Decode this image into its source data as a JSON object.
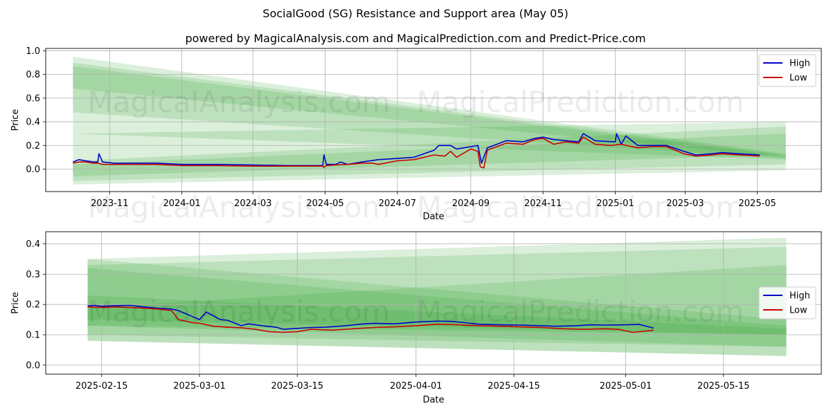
{
  "title": "SocialGood (SG) Resistance and Support area (May 05)",
  "subtitle": "powered by MagicalAnalysis.com and MagicalPrediction.com and Predict-Price.com",
  "watermarks": [
    "MagicalAnalysis.com",
    "MagicalPrediction.com"
  ],
  "colors": {
    "high": "#0000cc",
    "low": "#cc0000",
    "band": "#2ca02c",
    "grid": "#b0b0b0"
  },
  "chart_data": [
    {
      "type": "line",
      "title": "",
      "xlabel": "Date",
      "ylabel": "Price",
      "xlim": [
        "2023-09-08",
        "2025-06-24"
      ],
      "ylim": [
        -0.19,
        1.02
      ],
      "grid": true,
      "legend": "upper right",
      "x_ticks": [
        "2023-11",
        "2024-01",
        "2024-03",
        "2024-05",
        "2024-07",
        "2024-09",
        "2024-11",
        "2025-01",
        "2025-03",
        "2025-05"
      ],
      "x_tick_dates": [
        "2023-11-01",
        "2024-01-01",
        "2024-03-01",
        "2024-05-01",
        "2024-07-01",
        "2024-09-01",
        "2024-11-01",
        "2025-01-01",
        "2025-03-01",
        "2025-05-01"
      ],
      "y_ticks": [
        "0.0",
        "0.2",
        "0.4",
        "0.6",
        "0.8",
        "1.0"
      ],
      "y_tick_values": [
        0.0,
        0.2,
        0.4,
        0.6,
        0.8,
        1.0
      ],
      "bands": {
        "start": "2023-10-01",
        "end": "2025-05-25",
        "resistance": [
          {
            "start": [
              0.3,
              0.95
            ],
            "end": [
              0.08,
              0.13
            ]
          },
          {
            "start": [
              0.48,
              0.9
            ],
            "end": [
              0.09,
              0.12
            ]
          },
          {
            "start": [
              0.68,
              0.87
            ],
            "end": [
              0.1,
              0.11
            ]
          }
        ],
        "support": [
          {
            "start": [
              -0.13,
              0.3
            ],
            "end": [
              -0.01,
              0.4
            ]
          },
          {
            "start": [
              -0.1,
              0.07
            ],
            "end": [
              0.04,
              0.36
            ]
          },
          {
            "start": [
              -0.06,
              0.04
            ],
            "end": [
              0.12,
              0.3
            ]
          }
        ]
      },
      "series": [
        {
          "name": "High",
          "x": [
            "2023-10-01",
            "2023-10-06",
            "2023-10-12",
            "2023-10-18",
            "2023-10-22",
            "2023-10-23",
            "2023-10-26",
            "2023-11-05",
            "2023-11-20",
            "2023-12-10",
            "2024-01-01",
            "2024-02-01",
            "2024-03-01",
            "2024-04-01",
            "2024-04-29",
            "2024-04-30",
            "2024-05-02",
            "2024-05-10",
            "2024-05-14",
            "2024-05-20",
            "2024-06-01",
            "2024-06-15",
            "2024-07-01",
            "2024-07-15",
            "2024-08-01",
            "2024-08-05",
            "2024-08-15",
            "2024-08-20",
            "2024-09-01",
            "2024-09-07",
            "2024-09-10",
            "2024-09-15",
            "2024-10-01",
            "2024-10-15",
            "2024-10-25",
            "2024-11-01",
            "2024-11-10",
            "2024-11-20",
            "2024-12-01",
            "2024-12-05",
            "2024-12-15",
            "2025-01-01",
            "2025-01-02",
            "2025-01-06",
            "2025-01-10",
            "2025-01-20",
            "2025-02-01",
            "2025-02-13",
            "2025-02-28",
            "2025-03-10",
            "2025-03-24",
            "2025-04-01",
            "2025-04-15",
            "2025-05-03"
          ],
          "values": [
            0.06,
            0.08,
            0.07,
            0.06,
            0.06,
            0.13,
            0.06,
            0.05,
            0.05,
            0.05,
            0.04,
            0.04,
            0.035,
            0.03,
            0.03,
            0.12,
            0.04,
            0.04,
            0.06,
            0.04,
            0.06,
            0.08,
            0.09,
            0.1,
            0.16,
            0.2,
            0.2,
            0.17,
            0.19,
            0.2,
            0.05,
            0.18,
            0.24,
            0.23,
            0.26,
            0.27,
            0.25,
            0.24,
            0.23,
            0.3,
            0.24,
            0.23,
            0.3,
            0.21,
            0.28,
            0.2,
            0.2,
            0.2,
            0.15,
            0.12,
            0.13,
            0.14,
            0.13,
            0.12
          ]
        },
        {
          "name": "Low",
          "x": [
            "2023-10-01",
            "2023-10-06",
            "2023-10-12",
            "2023-10-18",
            "2023-10-22",
            "2023-10-26",
            "2023-11-05",
            "2023-11-20",
            "2023-12-10",
            "2024-01-01",
            "2024-02-01",
            "2024-03-01",
            "2024-04-01",
            "2024-04-29",
            "2024-04-30",
            "2024-05-02",
            "2024-05-10",
            "2024-05-20",
            "2024-06-01",
            "2024-06-10",
            "2024-06-15",
            "2024-07-01",
            "2024-07-15",
            "2024-08-01",
            "2024-08-10",
            "2024-08-15",
            "2024-08-20",
            "2024-09-01",
            "2024-09-07",
            "2024-09-09",
            "2024-09-12",
            "2024-09-15",
            "2024-10-01",
            "2024-10-15",
            "2024-10-25",
            "2024-11-01",
            "2024-11-10",
            "2024-11-20",
            "2024-12-01",
            "2024-12-05",
            "2024-12-15",
            "2024-12-28",
            "2025-01-06",
            "2025-01-20",
            "2025-02-01",
            "2025-02-13",
            "2025-02-28",
            "2025-03-10",
            "2025-03-24",
            "2025-04-01",
            "2025-04-15",
            "2025-05-03"
          ],
          "values": [
            0.05,
            0.06,
            0.06,
            0.05,
            0.05,
            0.04,
            0.04,
            0.04,
            0.04,
            0.03,
            0.03,
            0.025,
            0.025,
            0.025,
            0.015,
            0.03,
            0.035,
            0.04,
            0.05,
            0.05,
            0.04,
            0.07,
            0.08,
            0.12,
            0.11,
            0.15,
            0.1,
            0.17,
            0.15,
            0.02,
            0.01,
            0.16,
            0.22,
            0.21,
            0.25,
            0.26,
            0.21,
            0.23,
            0.22,
            0.27,
            0.21,
            0.2,
            0.21,
            0.18,
            0.19,
            0.19,
            0.13,
            0.11,
            0.12,
            0.13,
            0.12,
            0.11
          ]
        }
      ]
    },
    {
      "type": "line",
      "title": "",
      "xlabel": "Date",
      "ylabel": "Price",
      "xlim": [
        "2025-02-07",
        "2025-05-29"
      ],
      "ylim": [
        -0.03,
        0.44
      ],
      "grid": true,
      "legend": "center right",
      "x_ticks": [
        "2025-02-15",
        "2025-03-01",
        "2025-03-15",
        "2025-04-01",
        "2025-04-15",
        "2025-05-01",
        "2025-05-15"
      ],
      "x_tick_dates": [
        "2025-02-15",
        "2025-03-01",
        "2025-03-15",
        "2025-04-01",
        "2025-04-15",
        "2025-05-01",
        "2025-05-15"
      ],
      "y_ticks": [
        "0.0",
        "0.1",
        "0.2",
        "0.3",
        "0.4"
      ],
      "y_tick_values": [
        0.0,
        0.1,
        0.2,
        0.3,
        0.4
      ],
      "bands": {
        "start": "2025-02-13",
        "end": "2025-05-24",
        "resistance": [
          {
            "start": [
              0.08,
              0.35
            ],
            "end": [
              0.03,
              0.15
            ]
          },
          {
            "start": [
              0.13,
              0.32
            ],
            "end": [
              0.06,
              0.13
            ]
          },
          {
            "start": [
              0.15,
              0.23
            ],
            "end": [
              0.1,
              0.12
            ]
          }
        ],
        "support": [
          {
            "start": [
              0.08,
              0.35
            ],
            "end": [
              0.03,
              0.42
            ]
          },
          {
            "start": [
              0.1,
              0.33
            ],
            "end": [
              0.06,
              0.39
            ]
          },
          {
            "start": [
              0.13,
              0.19
            ],
            "end": [
              0.1,
              0.33
            ]
          }
        ]
      },
      "series": [
        {
          "name": "High",
          "x": [
            "2025-02-13",
            "2025-02-14",
            "2025-02-15",
            "2025-02-17",
            "2025-02-19",
            "2025-02-21",
            "2025-02-23",
            "2025-02-25",
            "2025-02-26",
            "2025-02-28",
            "2025-03-01",
            "2025-03-02",
            "2025-03-04",
            "2025-03-05",
            "2025-03-07",
            "2025-03-08",
            "2025-03-10",
            "2025-03-12",
            "2025-03-13",
            "2025-03-15",
            "2025-03-17",
            "2025-03-19",
            "2025-03-22",
            "2025-03-24",
            "2025-03-26",
            "2025-03-29",
            "2025-04-01",
            "2025-04-04",
            "2025-04-06",
            "2025-04-08",
            "2025-04-10",
            "2025-04-13",
            "2025-04-16",
            "2025-04-19",
            "2025-04-21",
            "2025-04-24",
            "2025-04-26",
            "2025-04-28",
            "2025-05-01",
            "2025-05-03",
            "2025-05-05"
          ],
          "values": [
            0.195,
            0.197,
            0.194,
            0.196,
            0.197,
            0.192,
            0.188,
            0.185,
            0.18,
            0.16,
            0.15,
            0.175,
            0.15,
            0.148,
            0.13,
            0.136,
            0.13,
            0.125,
            0.118,
            0.121,
            0.124,
            0.125,
            0.13,
            0.135,
            0.138,
            0.136,
            0.142,
            0.145,
            0.144,
            0.14,
            0.135,
            0.133,
            0.132,
            0.13,
            0.128,
            0.13,
            0.133,
            0.132,
            0.133,
            0.134,
            0.122
          ]
        },
        {
          "name": "Low",
          "x": [
            "2025-02-13",
            "2025-02-15",
            "2025-02-17",
            "2025-02-19",
            "2025-02-21",
            "2025-02-23",
            "2025-02-25",
            "2025-02-26",
            "2025-02-28",
            "2025-03-01",
            "2025-03-03",
            "2025-03-05",
            "2025-03-07",
            "2025-03-09",
            "2025-03-11",
            "2025-03-13",
            "2025-03-15",
            "2025-03-17",
            "2025-03-20",
            "2025-03-23",
            "2025-03-26",
            "2025-03-29",
            "2025-04-01",
            "2025-04-04",
            "2025-04-07",
            "2025-04-10",
            "2025-04-13",
            "2025-04-16",
            "2025-04-19",
            "2025-04-22",
            "2025-04-25",
            "2025-04-28",
            "2025-04-30",
            "2025-05-02",
            "2025-05-05"
          ],
          "values": [
            0.192,
            0.19,
            0.192,
            0.19,
            0.188,
            0.185,
            0.18,
            0.15,
            0.14,
            0.138,
            0.128,
            0.125,
            0.123,
            0.118,
            0.11,
            0.108,
            0.11,
            0.118,
            0.115,
            0.12,
            0.124,
            0.126,
            0.13,
            0.135,
            0.133,
            0.13,
            0.128,
            0.126,
            0.124,
            0.12,
            0.118,
            0.12,
            0.118,
            0.108,
            0.115
          ]
        }
      ]
    }
  ]
}
